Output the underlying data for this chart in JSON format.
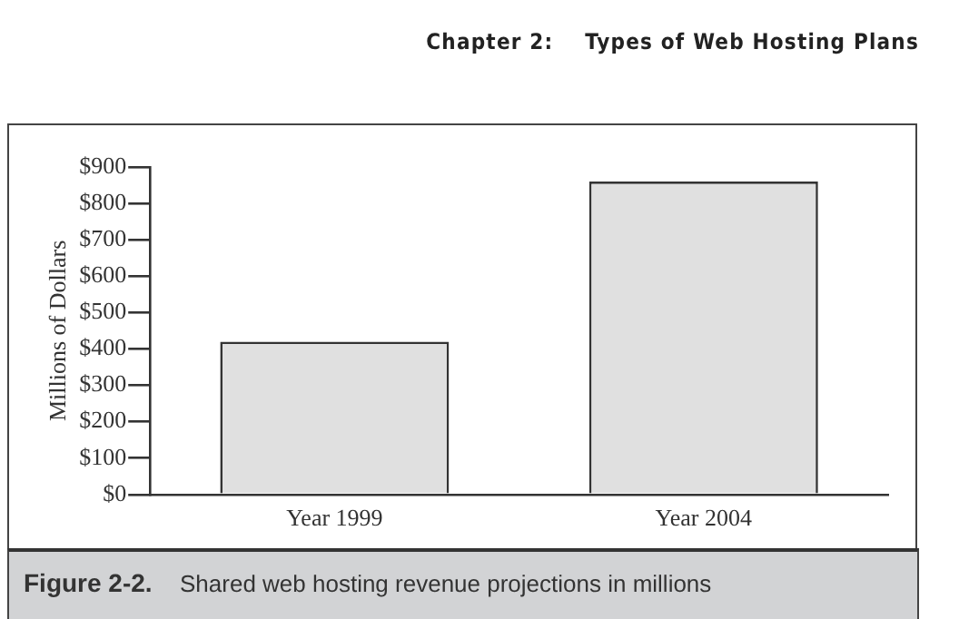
{
  "chart_data": {
    "type": "bar",
    "title": "Figure 2-2.",
    "subtitle": "Shared web hosting revenue projections in millions",
    "ylabel": "Millions of Dollars",
    "annotations": [
      "Chapter 2:    Types of Web Hosting Plans"
    ],
    "categories": [
      "Year 1999",
      "Year 2004"
    ],
    "values": [
      420,
      860
    ],
    "color": "#e0e0e0",
    "ylim": [
      0,
      900
    ],
    "yticks": [
      {
        "value": 0,
        "label": "$0"
      },
      {
        "value": 100,
        "label": "$100"
      },
      {
        "value": 200,
        "label": "$200"
      },
      {
        "value": 300,
        "label": "$300"
      },
      {
        "value": 400,
        "label": "$400"
      },
      {
        "value": 500,
        "label": "$500"
      },
      {
        "value": 600,
        "label": "$600"
      },
      {
        "value": 700,
        "label": "$700"
      },
      {
        "value": 800,
        "label": "$800"
      },
      {
        "value": 900,
        "label": "$900"
      }
    ],
    "grid": false,
    "legend": false
  }
}
